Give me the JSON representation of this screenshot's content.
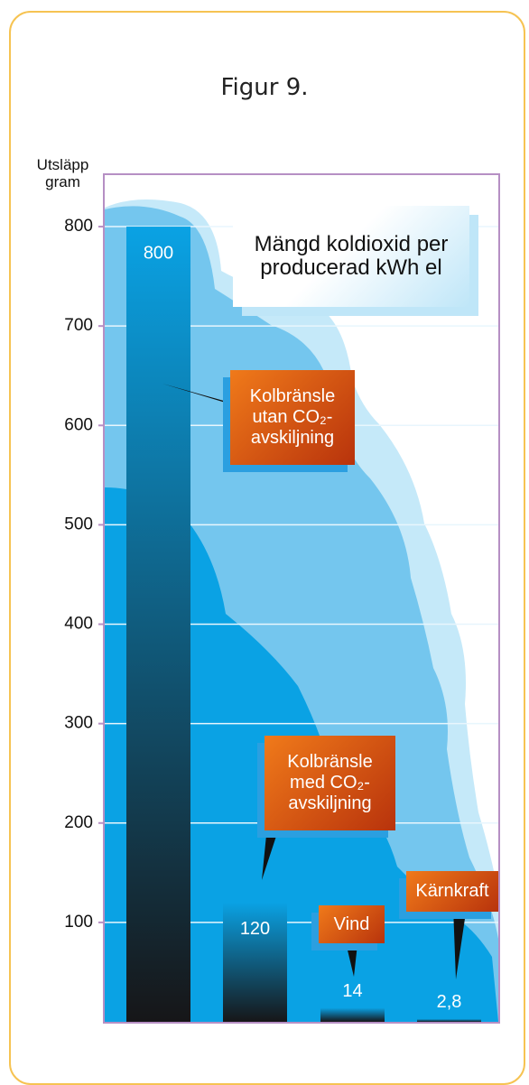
{
  "chart_data": {
    "type": "bar",
    "title": "Figur 9.",
    "y_label": "Utsläpp gram",
    "annotation": "Mängd koldioxid per producerad kWh el",
    "categories": [
      "Kolbränsle utan CO₂-avskiljning",
      "Kolbränsle med CO₂-avskiljning",
      "Vind",
      "Kärnkraft"
    ],
    "values": [
      800,
      120,
      14,
      2.8
    ],
    "value_labels": [
      "800",
      "120",
      "14",
      "2,8"
    ],
    "bar_gradient": [
      "#0aa2e4",
      "#161618"
    ],
    "ylim": [
      0,
      850
    ],
    "yticks": [
      100,
      200,
      300,
      400,
      500,
      600,
      700,
      800
    ],
    "grid": true
  }
}
